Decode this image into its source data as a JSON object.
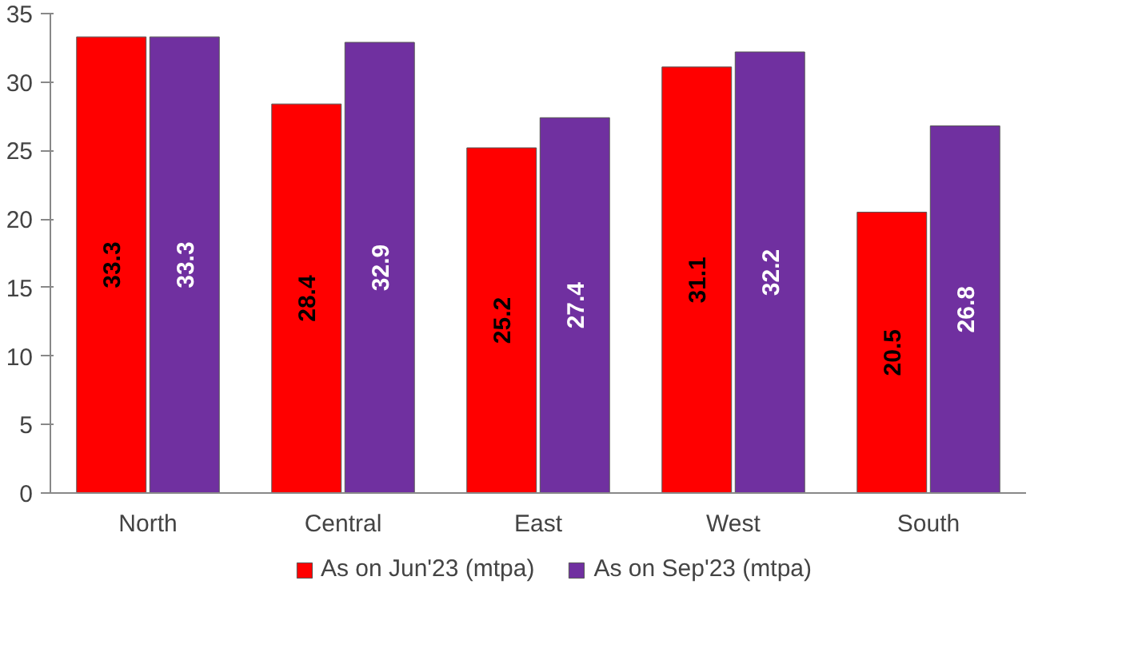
{
  "chart_data": {
    "type": "bar",
    "categories": [
      "North",
      "Central",
      "East",
      "West",
      "South"
    ],
    "series": [
      {
        "name": "As on Jun'23 (mtpa)",
        "color": "#ff0000",
        "values": [
          33.3,
          28.4,
          25.2,
          31.1,
          20.5
        ]
      },
      {
        "name": "As on Sep'23 (mtpa)",
        "color": "#7030a0",
        "values": [
          33.3,
          32.9,
          27.4,
          32.2,
          26.8
        ]
      }
    ],
    "ylim": [
      0,
      35
    ],
    "yticks": [
      0,
      5,
      10,
      15,
      20,
      25,
      30,
      35
    ],
    "grid": false,
    "legend": "bottom",
    "data_labels": true
  }
}
